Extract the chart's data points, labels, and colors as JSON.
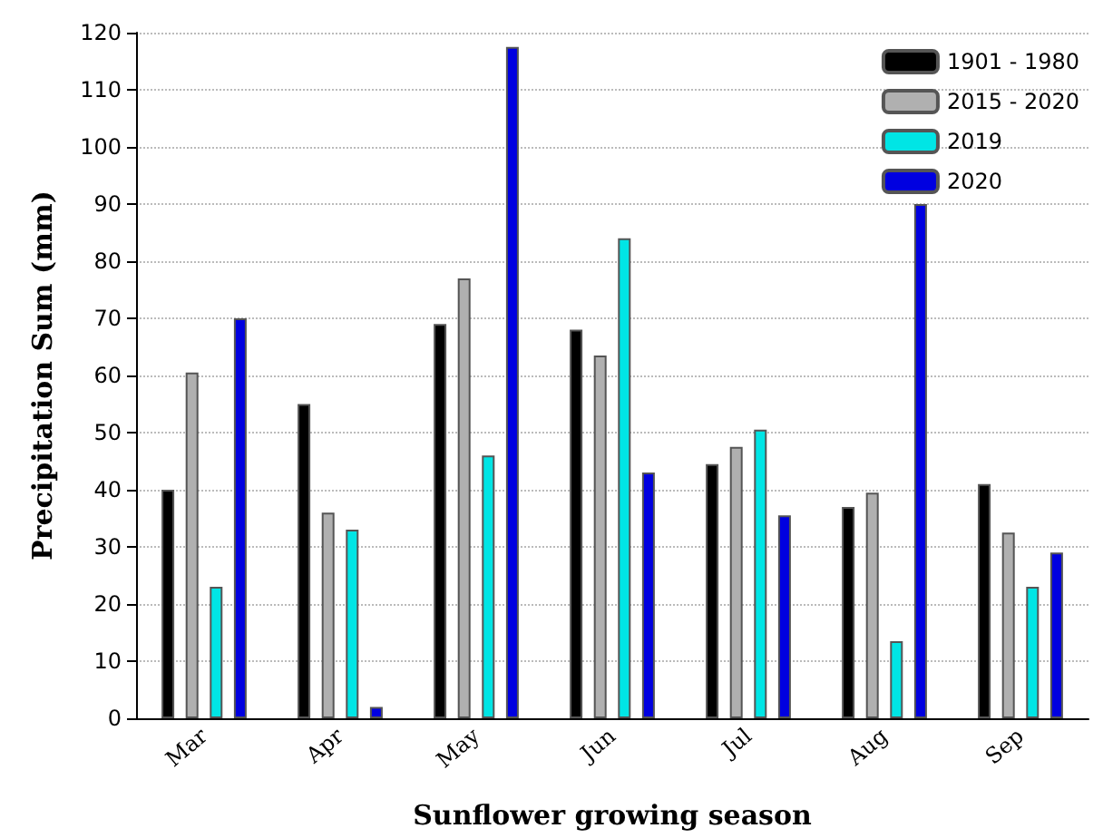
{
  "chart_data": {
    "type": "bar",
    "xlabel": "Sunflower growing season",
    "ylabel": "Precipitation Sum (mm)",
    "categories": [
      "Mar",
      "Apr",
      "May",
      "Jun",
      "Jul",
      "Aug",
      "Sep"
    ],
    "series": [
      {
        "name": "1901 - 1980",
        "color": "#000000",
        "values": [
          40,
          55,
          69,
          68,
          44.5,
          37,
          41
        ]
      },
      {
        "name": "2015 - 2020",
        "color": "#b0b0b0",
        "values": [
          60.5,
          36,
          77,
          63.5,
          47.5,
          39.5,
          32.5
        ]
      },
      {
        "name": "2019",
        "color": "#00e5e5",
        "values": [
          23,
          33,
          46,
          84,
          50.5,
          13.5,
          23
        ]
      },
      {
        "name": "2020",
        "color": "#0000e0",
        "values": [
          70,
          2,
          117.5,
          43,
          35.5,
          90,
          29
        ]
      }
    ],
    "ylim": [
      0,
      120
    ],
    "yticks": [
      0,
      10,
      20,
      30,
      40,
      50,
      60,
      70,
      80,
      90,
      100,
      110,
      120
    ],
    "grid": "y",
    "legend": "top right"
  }
}
